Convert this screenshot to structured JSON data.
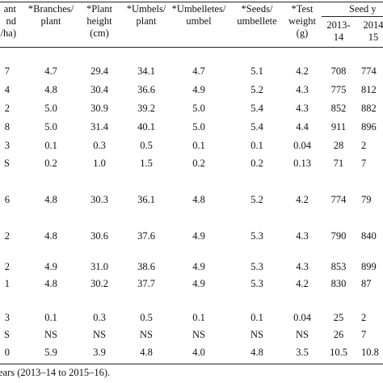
{
  "table": {
    "headers": {
      "first": [
        "ant",
        "nd",
        "/ha)"
      ],
      "branches": [
        "*Branches/",
        "plant"
      ],
      "plant_height": [
        "*Plant",
        "height",
        "(cm)"
      ],
      "umbels": [
        "*Umbels/",
        "plant"
      ],
      "umbelletes": [
        "*Umbelletes/",
        "umbel"
      ],
      "seeds": [
        "*Seeds/",
        "umbellete"
      ],
      "test_weight": [
        "*Test",
        "weight",
        "(g)"
      ],
      "seed_group": "Seed y",
      "y1": [
        "2013-",
        "14"
      ],
      "y2": [
        "2014",
        "15"
      ]
    },
    "rows": [
      [
        "7",
        "4.7",
        "29.4",
        "34.1",
        "4.7",
        "5.1",
        "4.2",
        "708",
        "774"
      ],
      [
        "4",
        "4.8",
        "30.4",
        "36.6",
        "4.9",
        "5.2",
        "4.3",
        "775",
        "812"
      ],
      [
        "2",
        "5.0",
        "30.9",
        "39.2",
        "5.0",
        "5.4",
        "4.3",
        "852",
        "882"
      ],
      [
        "8",
        "5.0",
        "31.4",
        "40.1",
        "5.0",
        "5.4",
        "4.4",
        "911",
        "896"
      ],
      [
        "3",
        "0.1",
        "0.3",
        "0.5",
        "0.1",
        "0.1",
        "0.04",
        "28",
        "2"
      ],
      [
        "S",
        "0.2",
        "1.0",
        "1.5",
        "0.2",
        "0.2",
        "0.13",
        "71",
        "7"
      ],
      [
        "6",
        "4.8",
        "30.3",
        "36.1",
        "4.8",
        "5.2",
        "4.2",
        "774",
        "79"
      ],
      [
        "2",
        "4.8",
        "30.6",
        "37.6",
        "4.9",
        "5.3",
        "4.3",
        "790",
        "840"
      ],
      [
        "2",
        "4.9",
        "31.0",
        "38.6",
        "4.9",
        "5.3",
        "4.3",
        "853",
        "899"
      ],
      [
        "1",
        "4.8",
        "30.2",
        "37.7",
        "4.9",
        "5.3",
        "4.2",
        "830",
        "87"
      ],
      [
        "3",
        "0.1",
        "0.3",
        "0.5",
        "0.1",
        "0.1",
        "0.04",
        "25",
        "2"
      ],
      [
        "S",
        "NS",
        "NS",
        "NS",
        "NS",
        "NS",
        "NS",
        "26",
        "7"
      ],
      [
        "0",
        "5.9",
        "3.9",
        "4.8",
        "4.0",
        "4.8",
        "3.5",
        "10.5",
        "10.8"
      ]
    ],
    "footnote": "ears (2013–14 to 2015–16)."
  }
}
